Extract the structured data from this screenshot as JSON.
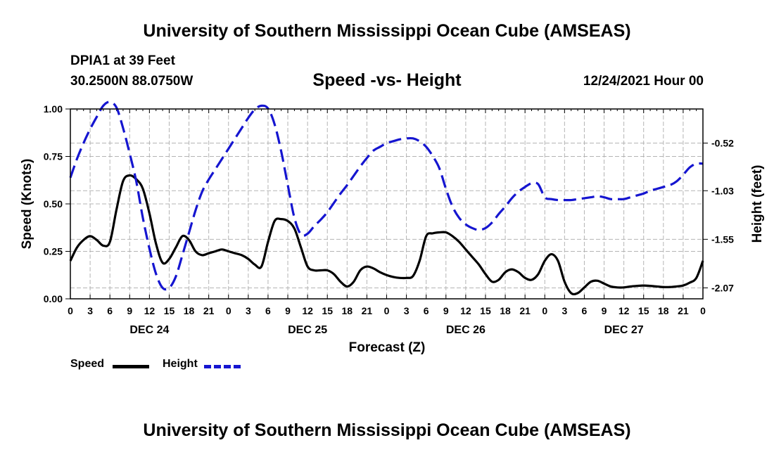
{
  "header": {
    "title": "University of Southern Mississippi Ocean Cube (AMSEAS)",
    "station": "DPIA1 at 39 Feet",
    "coords": "30.2500N  88.0750W",
    "subtitle": "Speed -vs- Height",
    "datetime": "12/24/2021 Hour 00"
  },
  "footer": {
    "title": "University of Southern Mississippi Ocean Cube (AMSEAS)"
  },
  "legend": {
    "speed_label": "Speed",
    "height_label": "Height"
  },
  "colors": {
    "speed": "#000000",
    "height": "#1515d0",
    "grid": "#b4b4b4"
  },
  "chart_data": {
    "type": "line",
    "title": "Speed -vs- Height",
    "xlabel": "Forecast (Z)",
    "ylabel": "Speed (Knots)",
    "y2label": "Height (feet)",
    "x_unit": "forecast hour",
    "xlim": [
      0,
      96
    ],
    "x_tick_step": 3,
    "x_tick_labels": [
      "0",
      "3",
      "6",
      "9",
      "12",
      "15",
      "18",
      "21",
      "0",
      "3",
      "6",
      "9",
      "12",
      "15",
      "18",
      "21",
      "0",
      "3",
      "6",
      "9",
      "12",
      "15",
      "18",
      "21",
      "0",
      "3",
      "6",
      "9",
      "12",
      "15",
      "18",
      "21",
      "0"
    ],
    "day_labels": [
      {
        "label": "DEC 24",
        "hour": 12
      },
      {
        "label": "DEC 25",
        "hour": 36
      },
      {
        "label": "DEC 26",
        "hour": 60
      },
      {
        "label": "DEC 27",
        "hour": 84
      }
    ],
    "ylim": [
      0,
      1.0
    ],
    "y_ticks": [
      0.0,
      0.25,
      0.5,
      0.75,
      1.0
    ],
    "y_tick_labels": [
      "0.00",
      "0.25",
      "0.50",
      "0.75",
      "1.00"
    ],
    "y2lim": [
      -2.1871,
      -0.1549
    ],
    "y2_ticks": [
      -0.52,
      -1.03,
      -1.55,
      -2.07
    ],
    "y2_tick_labels": [
      "-0.52",
      "-1.03",
      "-1.55",
      "-2.07"
    ],
    "grid": true,
    "series": [
      {
        "name": "Speed",
        "axis": "left",
        "style": "solid",
        "x": [
          0,
          1,
          2,
          3,
          4,
          5,
          6,
          7,
          8,
          9,
          10,
          11,
          12,
          13,
          14,
          15,
          16,
          17,
          18,
          19,
          20,
          21,
          22,
          23,
          24,
          25,
          26,
          27,
          28,
          29,
          30,
          31,
          32,
          33,
          34,
          35,
          36,
          37,
          38,
          39,
          40,
          41,
          42,
          43,
          44,
          45,
          46,
          47,
          48,
          49,
          50,
          51,
          52,
          53,
          54,
          55,
          56,
          57,
          58,
          59,
          60,
          61,
          62,
          63,
          64,
          65,
          66,
          67,
          68,
          69,
          70,
          71,
          72,
          73,
          74,
          75,
          76,
          77,
          78,
          79,
          80,
          81,
          82,
          83,
          84,
          85,
          86,
          87,
          88,
          89,
          90,
          91,
          92,
          93,
          94,
          95,
          96
        ],
        "values": [
          0.2,
          0.27,
          0.31,
          0.33,
          0.31,
          0.28,
          0.3,
          0.47,
          0.62,
          0.65,
          0.63,
          0.58,
          0.45,
          0.29,
          0.19,
          0.21,
          0.27,
          0.33,
          0.31,
          0.25,
          0.23,
          0.24,
          0.25,
          0.26,
          0.25,
          0.24,
          0.23,
          0.21,
          0.18,
          0.17,
          0.3,
          0.41,
          0.42,
          0.41,
          0.37,
          0.27,
          0.17,
          0.15,
          0.15,
          0.15,
          0.13,
          0.09,
          0.065,
          0.09,
          0.15,
          0.17,
          0.16,
          0.14,
          0.125,
          0.115,
          0.11,
          0.11,
          0.12,
          0.2,
          0.33,
          0.345,
          0.35,
          0.35,
          0.33,
          0.3,
          0.26,
          0.22,
          0.18,
          0.13,
          0.09,
          0.1,
          0.14,
          0.155,
          0.14,
          0.11,
          0.1,
          0.13,
          0.2,
          0.235,
          0.2,
          0.09,
          0.03,
          0.03,
          0.06,
          0.09,
          0.095,
          0.08,
          0.065,
          0.06,
          0.06,
          0.065,
          0.068,
          0.07,
          0.068,
          0.065,
          0.062,
          0.062,
          0.065,
          0.07,
          0.085,
          0.11,
          0.2
        ]
      },
      {
        "name": "Height",
        "axis": "right",
        "style": "dashed",
        "x": [
          0,
          1,
          2,
          3,
          4,
          5,
          6,
          7,
          8,
          9,
          10,
          11,
          12,
          13,
          14,
          15,
          16,
          17,
          18,
          19,
          20,
          21,
          22,
          23,
          24,
          25,
          26,
          27,
          28,
          29,
          30,
          31,
          32,
          33,
          34,
          35,
          36,
          37,
          38,
          39,
          40,
          41,
          42,
          43,
          44,
          45,
          46,
          47,
          48,
          49,
          50,
          51,
          52,
          53,
          54,
          55,
          56,
          57,
          58,
          59,
          60,
          61,
          62,
          63,
          64,
          65,
          66,
          67,
          68,
          69,
          70,
          71,
          72,
          73,
          74,
          75,
          76,
          77,
          78,
          79,
          80,
          81,
          82,
          83,
          84,
          85,
          86,
          87,
          88,
          89,
          90,
          91,
          92,
          93,
          94,
          95,
          96
        ],
        "values": [
          -0.89,
          -0.69,
          -0.52,
          -0.37,
          -0.24,
          -0.12,
          -0.08,
          -0.14,
          -0.36,
          -0.63,
          -0.93,
          -1.32,
          -1.65,
          -1.92,
          -2.07,
          -2.07,
          -1.95,
          -1.72,
          -1.48,
          -1.24,
          -1.04,
          -0.91,
          -0.8,
          -0.69,
          -0.58,
          -0.47,
          -0.36,
          -0.25,
          -0.16,
          -0.12,
          -0.15,
          -0.32,
          -0.61,
          -0.97,
          -1.32,
          -1.5,
          -1.49,
          -1.41,
          -1.34,
          -1.26,
          -1.16,
          -1.06,
          -0.97,
          -0.87,
          -0.77,
          -0.68,
          -0.6,
          -0.56,
          -0.52,
          -0.5,
          -0.48,
          -0.47,
          -0.47,
          -0.5,
          -0.56,
          -0.66,
          -0.79,
          -1.01,
          -1.2,
          -1.32,
          -1.39,
          -1.43,
          -1.45,
          -1.43,
          -1.37,
          -1.28,
          -1.2,
          -1.11,
          -1.04,
          -0.99,
          -0.95,
          -0.96,
          -1.1,
          -1.12,
          -1.13,
          -1.13,
          -1.13,
          -1.12,
          -1.11,
          -1.1,
          -1.09,
          -1.1,
          -1.12,
          -1.12,
          -1.12,
          -1.1,
          -1.08,
          -1.06,
          -1.03,
          -1.01,
          -0.99,
          -0.97,
          -0.93,
          -0.86,
          -0.78,
          -0.74,
          -0.74
        ]
      }
    ]
  }
}
